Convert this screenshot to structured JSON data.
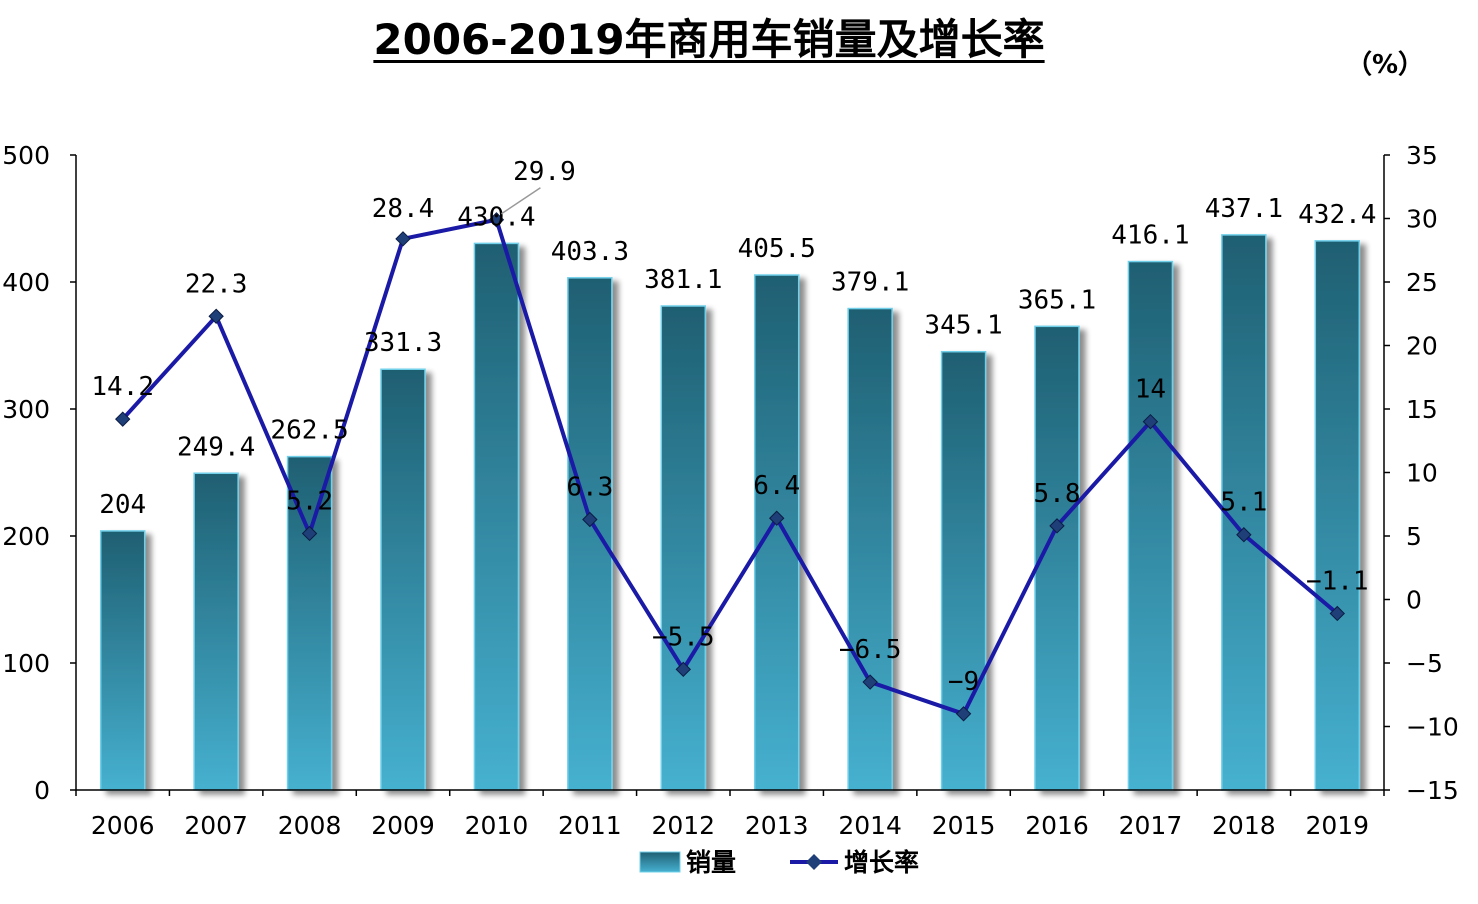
{
  "title": "2006-2019年商用车销量及增长率",
  "unit": "（%）",
  "chart_data": {
    "type": "bar+line",
    "categories": [
      "2006",
      "2007",
      "2008",
      "2009",
      "2010",
      "2011",
      "2012",
      "2013",
      "2014",
      "2015",
      "2016",
      "2017",
      "2018",
      "2019"
    ],
    "series": [
      {
        "name": "销量",
        "type": "bar",
        "axis": "left",
        "values": [
          204,
          249.4,
          262.5,
          331.3,
          430.4,
          403.3,
          381.1,
          405.5,
          379.1,
          345.1,
          365.1,
          416.1,
          437.1,
          432.4
        ],
        "labels": [
          "204",
          "249.4",
          "262.5",
          "331.3",
          "430.4",
          "403.3",
          "381.1",
          "405.5",
          "379.1",
          "345.1",
          "365.1",
          "416.1",
          "437.1",
          "432.4"
        ]
      },
      {
        "name": "增长率",
        "type": "line",
        "axis": "right",
        "values": [
          14.2,
          22.3,
          5.2,
          28.4,
          29.9,
          6.3,
          -5.5,
          6.4,
          -6.5,
          -9,
          5.8,
          14,
          5.1,
          -1.1
        ],
        "labels": [
          "14.2",
          "22.3",
          "5.2",
          "28.4",
          "29.9",
          "6.3",
          "−5.5",
          "6.4",
          "−6.5",
          "−9",
          "5.8",
          "14",
          "5.1",
          "−1.1"
        ]
      }
    ],
    "y_left": {
      "min": 0,
      "max": 500,
      "ticks": [
        "0",
        "100",
        "200",
        "300",
        "400",
        "500"
      ]
    },
    "y_right": {
      "min": -15,
      "max": 35,
      "ticks": [
        "−15",
        "−10",
        "−5",
        "0",
        "5",
        "10",
        "15",
        "20",
        "25",
        "30",
        "35"
      ]
    },
    "legend_position": "bottom",
    "grid": false,
    "colors": {
      "bar_top": "#1f5f72",
      "bar_bottom": "#46b1d0",
      "bar_edge": "#6fd0ea",
      "line": "#1a1aa6",
      "marker": "#1f3f78"
    }
  }
}
